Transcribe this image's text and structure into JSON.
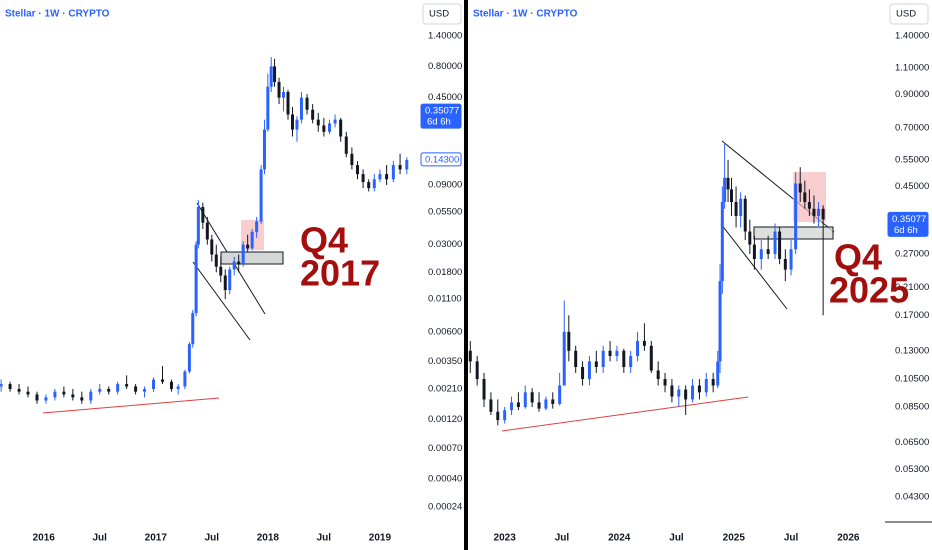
{
  "chart_data": [
    {
      "type": "candlestick",
      "title": "Stellar · 1W · CRYPTO",
      "currency": "USD",
      "log_scale": true,
      "up_color": "#2962ff",
      "down_color": "#131722",
      "xlim": [
        2015.61,
        2019.34
      ],
      "ylim": [
        0.000188,
        2.72
      ],
      "xticks": [
        {
          "value": 2016,
          "label": "2016"
        },
        {
          "value": 2016.5,
          "label": "Jul"
        },
        {
          "value": 2017,
          "label": "2017"
        },
        {
          "value": 2017.5,
          "label": "Jul"
        },
        {
          "value": 2018,
          "label": "2018"
        },
        {
          "value": 2018.5,
          "label": "Jul"
        },
        {
          "value": 2019,
          "label": "2019"
        }
      ],
      "yticks": [
        {
          "value": 1.4,
          "label": "1.40000"
        },
        {
          "value": 0.8,
          "label": "0.80000"
        },
        {
          "value": 0.45,
          "label": "0.45000"
        },
        {
          "value": 0.09,
          "label": "0.09000"
        },
        {
          "value": 0.055,
          "label": "0.05500"
        },
        {
          "value": 0.03,
          "label": "0.03000"
        },
        {
          "value": 0.018,
          "label": "0.01800"
        },
        {
          "value": 0.011,
          "label": "0.01100"
        },
        {
          "value": 0.006,
          "label": "0.00600"
        },
        {
          "value": 0.0035,
          "label": "0.00350"
        },
        {
          "value": 0.0021,
          "label": "0.00210"
        },
        {
          "value": 0.0012,
          "label": "0.00120"
        },
        {
          "value": 0.0007,
          "label": "0.00070"
        },
        {
          "value": 0.0004,
          "label": "0.00040"
        },
        {
          "value": 0.00024,
          "label": "0.00024"
        }
      ],
      "price_tags": [
        {
          "value": 0.35077,
          "label": "0.35077",
          "countdown": "6d 6h",
          "filled": true
        },
        {
          "value": 0.143,
          "label": "0.14300",
          "filled": false
        }
      ],
      "annotation": [
        "Q4",
        "2017"
      ],
      "x": [
        2015.62,
        2015.7,
        2015.78,
        2015.86,
        2015.94,
        2016.02,
        2016.1,
        2016.18,
        2016.26,
        2016.34,
        2016.42,
        2016.5,
        2016.58,
        2016.66,
        2016.74,
        2016.82,
        2016.9,
        2016.98,
        2017.06,
        2017.14,
        2017.2,
        2017.26,
        2017.3,
        2017.33,
        2017.36,
        2017.38,
        2017.42,
        2017.46,
        2017.5,
        2017.54,
        2017.58,
        2017.62,
        2017.66,
        2017.7,
        2017.74,
        2017.78,
        2017.82,
        2017.86,
        2017.9,
        2017.94,
        2017.97,
        2018.0,
        2018.03,
        2018.06,
        2018.1,
        2018.14,
        2018.18,
        2018.22,
        2018.26,
        2018.3,
        2018.35,
        2018.4,
        2018.45,
        2018.5,
        2018.55,
        2018.6,
        2018.65,
        2018.7,
        2018.75,
        2018.8,
        2018.85,
        2018.9,
        2018.95,
        2019.0,
        2019.06,
        2019.12,
        2019.18,
        2019.24
      ],
      "open": [
        0.0022,
        0.0023,
        0.0021,
        0.002,
        0.0019,
        0.0017,
        0.0018,
        0.002,
        0.0019,
        0.0018,
        0.0017,
        0.002,
        0.0021,
        0.002,
        0.0023,
        0.0022,
        0.002,
        0.0021,
        0.0025,
        0.0024,
        0.0021,
        0.0022,
        0.0029,
        0.0048,
        0.0085,
        0.03,
        0.06,
        0.045,
        0.033,
        0.025,
        0.02,
        0.017,
        0.013,
        0.019,
        0.022,
        0.021,
        0.03,
        0.028,
        0.038,
        0.046,
        0.12,
        0.25,
        0.55,
        0.8,
        0.6,
        0.45,
        0.5,
        0.33,
        0.25,
        0.3,
        0.45,
        0.36,
        0.3,
        0.27,
        0.24,
        0.28,
        0.3,
        0.22,
        0.16,
        0.13,
        0.11,
        0.095,
        0.085,
        0.1,
        0.11,
        0.1,
        0.13,
        0.12
      ],
      "high": [
        0.0025,
        0.0024,
        0.0023,
        0.0022,
        0.002,
        0.0019,
        0.0021,
        0.0022,
        0.0021,
        0.002,
        0.0021,
        0.0023,
        0.0022,
        0.0024,
        0.0027,
        0.0023,
        0.0022,
        0.0026,
        0.0032,
        0.0025,
        0.0023,
        0.003,
        0.005,
        0.009,
        0.032,
        0.068,
        0.065,
        0.05,
        0.036,
        0.03,
        0.024,
        0.019,
        0.02,
        0.024,
        0.025,
        0.032,
        0.036,
        0.04,
        0.05,
        0.13,
        0.3,
        0.7,
        0.95,
        0.92,
        0.65,
        0.55,
        0.52,
        0.38,
        0.32,
        0.5,
        0.48,
        0.4,
        0.34,
        0.31,
        0.3,
        0.33,
        0.31,
        0.24,
        0.18,
        0.14,
        0.12,
        0.1,
        0.11,
        0.12,
        0.13,
        0.14,
        0.16,
        0.15
      ],
      "low": [
        0.002,
        0.002,
        0.0019,
        0.0018,
        0.0016,
        0.0016,
        0.0017,
        0.0018,
        0.0017,
        0.0016,
        0.0016,
        0.0019,
        0.0019,
        0.0019,
        0.0021,
        0.0019,
        0.0018,
        0.002,
        0.0023,
        0.002,
        0.0019,
        0.0021,
        0.0028,
        0.0045,
        0.008,
        0.028,
        0.04,
        0.03,
        0.022,
        0.018,
        0.015,
        0.011,
        0.012,
        0.017,
        0.018,
        0.02,
        0.026,
        0.027,
        0.034,
        0.044,
        0.11,
        0.24,
        0.5,
        0.55,
        0.4,
        0.35,
        0.3,
        0.22,
        0.2,
        0.28,
        0.33,
        0.28,
        0.24,
        0.22,
        0.23,
        0.26,
        0.2,
        0.15,
        0.12,
        0.1,
        0.085,
        0.08,
        0.08,
        0.095,
        0.09,
        0.095,
        0.11,
        0.11
      ],
      "close": [
        0.0023,
        0.0021,
        0.002,
        0.0019,
        0.0017,
        0.0018,
        0.002,
        0.0019,
        0.0018,
        0.0017,
        0.002,
        0.0021,
        0.002,
        0.0023,
        0.0022,
        0.002,
        0.0021,
        0.0025,
        0.0024,
        0.0021,
        0.0022,
        0.0029,
        0.0048,
        0.0085,
        0.03,
        0.06,
        0.045,
        0.033,
        0.025,
        0.02,
        0.017,
        0.013,
        0.019,
        0.022,
        0.021,
        0.03,
        0.028,
        0.038,
        0.046,
        0.12,
        0.25,
        0.55,
        0.8,
        0.6,
        0.45,
        0.5,
        0.33,
        0.25,
        0.3,
        0.45,
        0.36,
        0.3,
        0.27,
        0.24,
        0.28,
        0.3,
        0.22,
        0.16,
        0.13,
        0.11,
        0.095,
        0.085,
        0.1,
        0.11,
        0.1,
        0.13,
        0.12,
        0.143
      ]
    },
    {
      "type": "candlestick",
      "title": "Stellar · 1W · CRYPTO",
      "currency": "USD",
      "log_scale": true,
      "up_color": "#2962ff",
      "down_color": "#131722",
      "xlim": [
        2022.68,
        2026.32
      ],
      "ylim": [
        0.0362,
        1.84
      ],
      "xticks": [
        {
          "value": 2023,
          "label": "2023"
        },
        {
          "value": 2023.5,
          "label": "Jul"
        },
        {
          "value": 2024,
          "label": "2024"
        },
        {
          "value": 2024.5,
          "label": "Jul"
        },
        {
          "value": 2025,
          "label": "2025"
        },
        {
          "value": 2025.5,
          "label": "Jul"
        },
        {
          "value": 2026,
          "label": "2026"
        }
      ],
      "yticks": [
        {
          "value": 1.4,
          "label": "1.40000"
        },
        {
          "value": 1.1,
          "label": "1.10000"
        },
        {
          "value": 0.9,
          "label": "0.90000"
        },
        {
          "value": 0.7,
          "label": "0.70000"
        },
        {
          "value": 0.55,
          "label": "0.55000"
        },
        {
          "value": 0.45,
          "label": "0.45000"
        },
        {
          "value": 0.27,
          "label": "0.27000"
        },
        {
          "value": 0.21,
          "label": "0.21000"
        },
        {
          "value": 0.17,
          "label": "0.17000"
        },
        {
          "value": 0.13,
          "label": "0.13000"
        },
        {
          "value": 0.105,
          "label": "0.10500"
        },
        {
          "value": 0.085,
          "label": "0.08500"
        },
        {
          "value": 0.065,
          "label": "0.06500"
        },
        {
          "value": 0.053,
          "label": "0.05300"
        },
        {
          "value": 0.043,
          "label": "0.04300"
        }
      ],
      "price_tags": [
        {
          "value": 0.35077,
          "label": "0.35077",
          "countdown": "6d 6h",
          "filled": true
        }
      ],
      "annotation": [
        "Q4",
        "2025"
      ],
      "x": [
        2022.7,
        2022.76,
        2022.82,
        2022.88,
        2022.94,
        2023.0,
        2023.06,
        2023.12,
        2023.18,
        2023.24,
        2023.3,
        2023.36,
        2023.42,
        2023.48,
        2023.52,
        2023.56,
        2023.62,
        2023.68,
        2023.74,
        2023.8,
        2023.86,
        2023.92,
        2023.98,
        2024.04,
        2024.1,
        2024.16,
        2024.22,
        2024.28,
        2024.34,
        2024.4,
        2024.46,
        2024.52,
        2024.58,
        2024.64,
        2024.7,
        2024.76,
        2024.82,
        2024.86,
        2024.88,
        2024.9,
        2024.92,
        2024.95,
        2024.98,
        2025.02,
        2025.06,
        2025.1,
        2025.14,
        2025.18,
        2025.24,
        2025.3,
        2025.36,
        2025.4,
        2025.45,
        2025.5,
        2025.54,
        2025.58,
        2025.62,
        2025.66,
        2025.7,
        2025.74,
        2025.78
      ],
      "open": [
        0.13,
        0.12,
        0.105,
        0.09,
        0.082,
        0.077,
        0.083,
        0.088,
        0.085,
        0.095,
        0.088,
        0.084,
        0.09,
        0.087,
        0.1,
        0.15,
        0.13,
        0.115,
        0.105,
        0.12,
        0.115,
        0.13,
        0.125,
        0.13,
        0.115,
        0.125,
        0.14,
        0.135,
        0.112,
        0.105,
        0.1,
        0.092,
        0.097,
        0.09,
        0.1,
        0.095,
        0.105,
        0.1,
        0.12,
        0.22,
        0.4,
        0.48,
        0.44,
        0.4,
        0.36,
        0.41,
        0.32,
        0.29,
        0.26,
        0.28,
        0.27,
        0.32,
        0.26,
        0.24,
        0.28,
        0.46,
        0.43,
        0.4,
        0.38,
        0.36,
        0.38
      ],
      "high": [
        0.14,
        0.125,
        0.11,
        0.095,
        0.09,
        0.085,
        0.092,
        0.095,
        0.1,
        0.098,
        0.095,
        0.092,
        0.095,
        0.11,
        0.19,
        0.17,
        0.135,
        0.12,
        0.125,
        0.13,
        0.135,
        0.14,
        0.135,
        0.132,
        0.13,
        0.15,
        0.16,
        0.14,
        0.12,
        0.11,
        0.105,
        0.1,
        0.1,
        0.105,
        0.105,
        0.11,
        0.11,
        0.13,
        0.25,
        0.45,
        0.62,
        0.55,
        0.48,
        0.45,
        0.43,
        0.42,
        0.35,
        0.31,
        0.3,
        0.31,
        0.34,
        0.33,
        0.28,
        0.3,
        0.5,
        0.52,
        0.47,
        0.44,
        0.42,
        0.4,
        0.39
      ],
      "low": [
        0.11,
        0.1,
        0.085,
        0.08,
        0.074,
        0.075,
        0.08,
        0.083,
        0.084,
        0.085,
        0.082,
        0.083,
        0.084,
        0.086,
        0.1,
        0.12,
        0.11,
        0.1,
        0.1,
        0.11,
        0.11,
        0.12,
        0.12,
        0.11,
        0.11,
        0.12,
        0.13,
        0.11,
        0.1,
        0.095,
        0.088,
        0.085,
        0.08,
        0.088,
        0.09,
        0.092,
        0.095,
        0.098,
        0.11,
        0.2,
        0.38,
        0.4,
        0.36,
        0.33,
        0.33,
        0.3,
        0.27,
        0.24,
        0.24,
        0.26,
        0.26,
        0.25,
        0.22,
        0.23,
        0.27,
        0.4,
        0.38,
        0.36,
        0.34,
        0.33,
        0.17
      ],
      "close": [
        0.12,
        0.105,
        0.09,
        0.082,
        0.077,
        0.083,
        0.088,
        0.085,
        0.095,
        0.088,
        0.084,
        0.09,
        0.087,
        0.1,
        0.15,
        0.13,
        0.115,
        0.105,
        0.12,
        0.115,
        0.13,
        0.125,
        0.13,
        0.115,
        0.125,
        0.14,
        0.135,
        0.112,
        0.105,
        0.1,
        0.092,
        0.097,
        0.09,
        0.1,
        0.095,
        0.105,
        0.1,
        0.12,
        0.22,
        0.4,
        0.48,
        0.44,
        0.4,
        0.36,
        0.41,
        0.32,
        0.29,
        0.26,
        0.28,
        0.27,
        0.32,
        0.26,
        0.24,
        0.28,
        0.46,
        0.43,
        0.4,
        0.38,
        0.36,
        0.38,
        0.35077
      ]
    }
  ]
}
